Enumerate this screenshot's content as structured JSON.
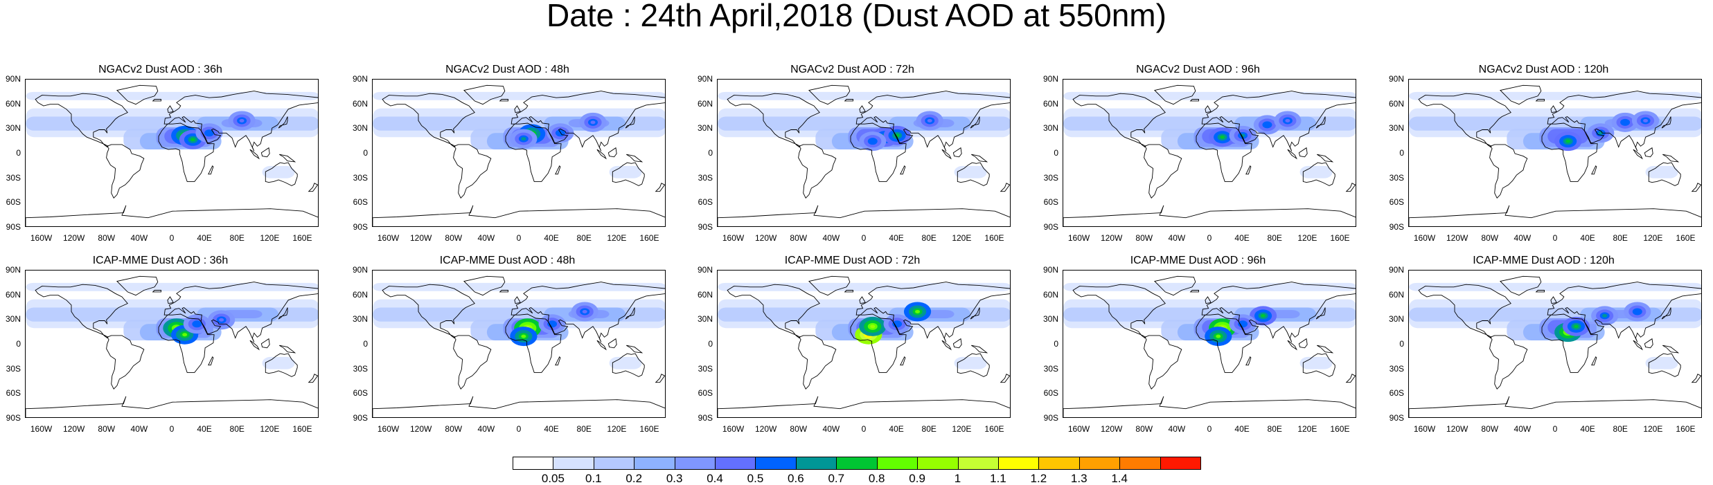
{
  "figure": {
    "title": "Date : 24th April,2018 (Dust AOD at 550nm)"
  },
  "panels": [
    {
      "title": "NGACv2 Dust AOD : 36h",
      "model": "NGACv2",
      "forecast_hour": 36,
      "hotspots": [
        {
          "lon": 15,
          "lat": 22,
          "level": 9
        },
        {
          "lon": 25,
          "lat": 17,
          "level": 8
        },
        {
          "lon": 45,
          "lat": 25,
          "level": 6
        },
        {
          "lon": 85,
          "lat": 40,
          "level": 5
        }
      ]
    },
    {
      "title": "NGACv2 Dust AOD : 48h",
      "model": "NGACv2",
      "forecast_hour": 48,
      "hotspots": [
        {
          "lon": 15,
          "lat": 24,
          "level": 9
        },
        {
          "lon": 5,
          "lat": 18,
          "level": 7
        },
        {
          "lon": 50,
          "lat": 25,
          "level": 6
        },
        {
          "lon": 90,
          "lat": 38,
          "level": 5
        }
      ]
    },
    {
      "title": "NGACv2 Dust AOD : 72h",
      "model": "NGACv2",
      "forecast_hour": 72,
      "hotspots": [
        {
          "lon": 25,
          "lat": 20,
          "level": 8
        },
        {
          "lon": 40,
          "lat": 22,
          "level": 8
        },
        {
          "lon": 10,
          "lat": 15,
          "level": 6
        },
        {
          "lon": 80,
          "lat": 40,
          "level": 5
        }
      ]
    },
    {
      "title": "NGACv2 Dust AOD : 96h",
      "model": "NGACv2",
      "forecast_hour": 96,
      "hotspots": [
        {
          "lon": 15,
          "lat": 20,
          "level": 8
        },
        {
          "lon": 40,
          "lat": 22,
          "level": 7
        },
        {
          "lon": 70,
          "lat": 35,
          "level": 6
        },
        {
          "lon": 95,
          "lat": 40,
          "level": 5
        }
      ]
    },
    {
      "title": "NGACv2 Dust AOD : 120h",
      "model": "NGACv2",
      "forecast_hour": 120,
      "hotspots": [
        {
          "lon": 15,
          "lat": 15,
          "level": 8
        },
        {
          "lon": 55,
          "lat": 25,
          "level": 7
        },
        {
          "lon": 85,
          "lat": 38,
          "level": 6
        },
        {
          "lon": 110,
          "lat": 40,
          "level": 5
        }
      ]
    },
    {
      "title": "ICAP-MME Dust AOD : 36h",
      "model": "ICAP-MME",
      "forecast_hour": 36,
      "hotspots": [
        {
          "lon": 5,
          "lat": 20,
          "level": 10
        },
        {
          "lon": 15,
          "lat": 12,
          "level": 9
        },
        {
          "lon": 30,
          "lat": 25,
          "level": 6
        },
        {
          "lon": 60,
          "lat": 30,
          "level": 5
        }
      ]
    },
    {
      "title": "ICAP-MME Dust AOD : 48h",
      "model": "ICAP-MME",
      "forecast_hour": 48,
      "hotspots": [
        {
          "lon": 10,
          "lat": 20,
          "level": 11
        },
        {
          "lon": 5,
          "lat": 10,
          "level": 9
        },
        {
          "lon": 40,
          "lat": 25,
          "level": 6
        },
        {
          "lon": 80,
          "lat": 40,
          "level": 5
        }
      ]
    },
    {
      "title": "ICAP-MME Dust AOD : 72h",
      "model": "ICAP-MME",
      "forecast_hour": 72,
      "hotspots": [
        {
          "lon": 5,
          "lat": 12,
          "level": 13
        },
        {
          "lon": 10,
          "lat": 22,
          "level": 10
        },
        {
          "lon": 65,
          "lat": 40,
          "level": 9
        },
        {
          "lon": 40,
          "lat": 25,
          "level": 6
        }
      ]
    },
    {
      "title": "ICAP-MME Dust AOD : 96h",
      "model": "ICAP-MME",
      "forecast_hour": 96,
      "hotspots": [
        {
          "lon": 15,
          "lat": 20,
          "level": 11
        },
        {
          "lon": 10,
          "lat": 10,
          "level": 9
        },
        {
          "lon": 65,
          "lat": 35,
          "level": 8
        },
        {
          "lon": 40,
          "lat": 25,
          "level": 6
        }
      ]
    },
    {
      "title": "ICAP-MME Dust AOD : 120h",
      "model": "ICAP-MME",
      "forecast_hour": 120,
      "hotspots": [
        {
          "lon": 15,
          "lat": 15,
          "level": 10
        },
        {
          "lon": 25,
          "lat": 22,
          "level": 8
        },
        {
          "lon": 60,
          "lat": 35,
          "level": 7
        },
        {
          "lon": 100,
          "lat": 40,
          "level": 6
        }
      ]
    }
  ],
  "axes": {
    "lat_ticks": [
      "90N",
      "60N",
      "30N",
      "0",
      "30S",
      "60S",
      "90S"
    ],
    "lat_values": [
      90,
      60,
      30,
      0,
      -30,
      -60,
      -90
    ],
    "lon_ticks": [
      "160W",
      "120W",
      "80W",
      "40W",
      "0",
      "40E",
      "80E",
      "120E",
      "160E"
    ],
    "lon_values": [
      -160,
      -120,
      -80,
      -40,
      0,
      40,
      80,
      120,
      160
    ]
  },
  "colorbar": {
    "labels": [
      "0.05",
      "0.1",
      "0.2",
      "0.3",
      "0.4",
      "0.5",
      "0.6",
      "0.7",
      "0.8",
      "0.9",
      "1",
      "1.1",
      "1.2",
      "1.3",
      "1.4"
    ],
    "colors": [
      "#ffffff",
      "#d6e2ff",
      "#b5c9ff",
      "#8eb2ff",
      "#7f96ff",
      "#6370ff",
      "#0063ff",
      "#009696",
      "#00c633",
      "#63ff00",
      "#96ff00",
      "#c6ff33",
      "#ffff00",
      "#ffc600",
      "#ffa000",
      "#ff7c00",
      "#ff1900"
    ]
  }
}
